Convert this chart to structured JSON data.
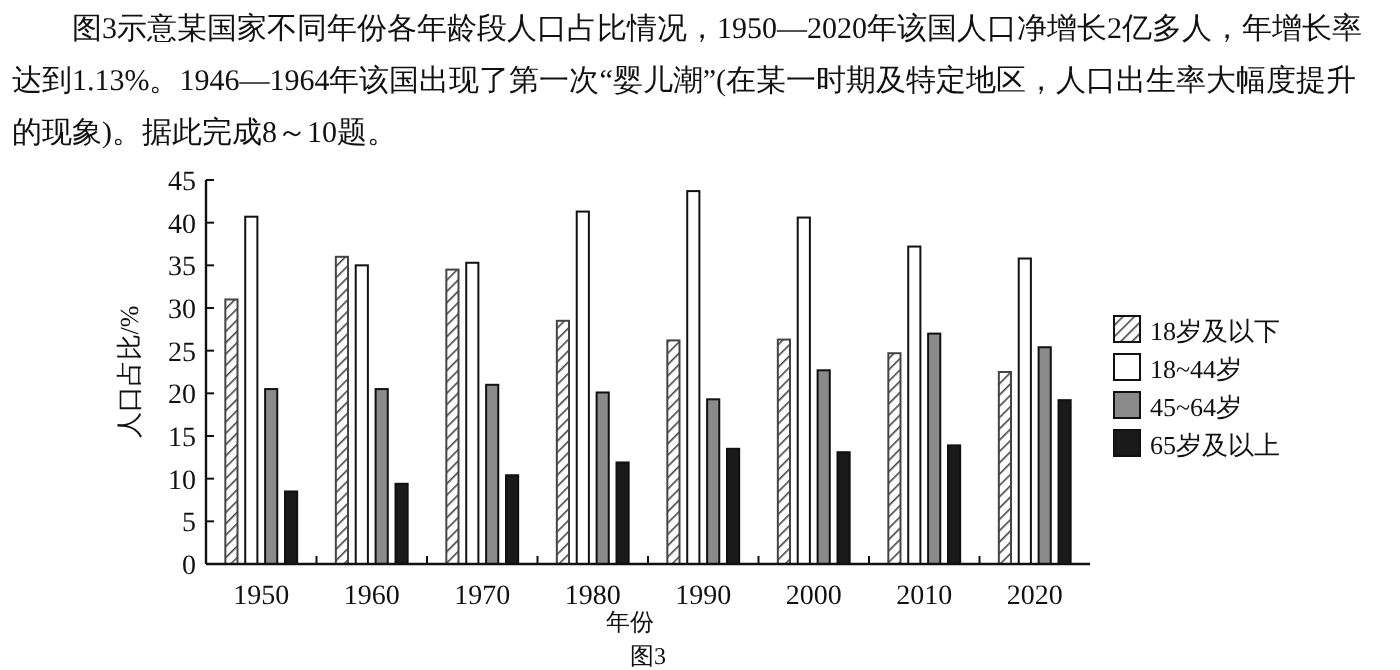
{
  "chart_data": {
    "type": "bar",
    "annotations": [
      "图3示意某国家不同年份各年龄段人口占比情况，1950—2020年该国人口净增长2亿多人，年增长率达到1.13%。1946—1964年该国出现了第一次“婴儿潮”(在某一时期及特定地区，人口出生率大幅度提升的现象)。据此完成8～10题。",
      "图3"
    ],
    "xlabel": "年份",
    "ylabel": "人口占比/%",
    "categories": [
      "1950",
      "1960",
      "1970",
      "1980",
      "1990",
      "2000",
      "2010",
      "2020"
    ],
    "series": [
      {
        "name": "18岁及以下",
        "color": "#444444",
        "values": [
          31,
          36,
          34.5,
          28.5,
          26.2,
          26.3,
          24.7,
          22.5
        ]
      },
      {
        "name": "18~44岁",
        "color": "#ffffff",
        "values": [
          40.7,
          35,
          35.3,
          41.3,
          43.7,
          40.6,
          37.2,
          35.8
        ]
      },
      {
        "name": "45~64岁",
        "color": "#8a8a8a",
        "values": [
          20.5,
          20.5,
          21,
          20.1,
          19.3,
          22.7,
          27,
          25.4
        ]
      },
      {
        "name": "65岁及以上",
        "color": "#1a1a1a",
        "values": [
          8.5,
          9.4,
          10.4,
          11.9,
          13.5,
          13.1,
          13.9,
          19.2
        ]
      }
    ],
    "ylim": [
      0,
      45
    ],
    "yticks": [
      0,
      5,
      10,
      15,
      20,
      25,
      30,
      35,
      40,
      45
    ],
    "grid": false,
    "legend": "right"
  }
}
